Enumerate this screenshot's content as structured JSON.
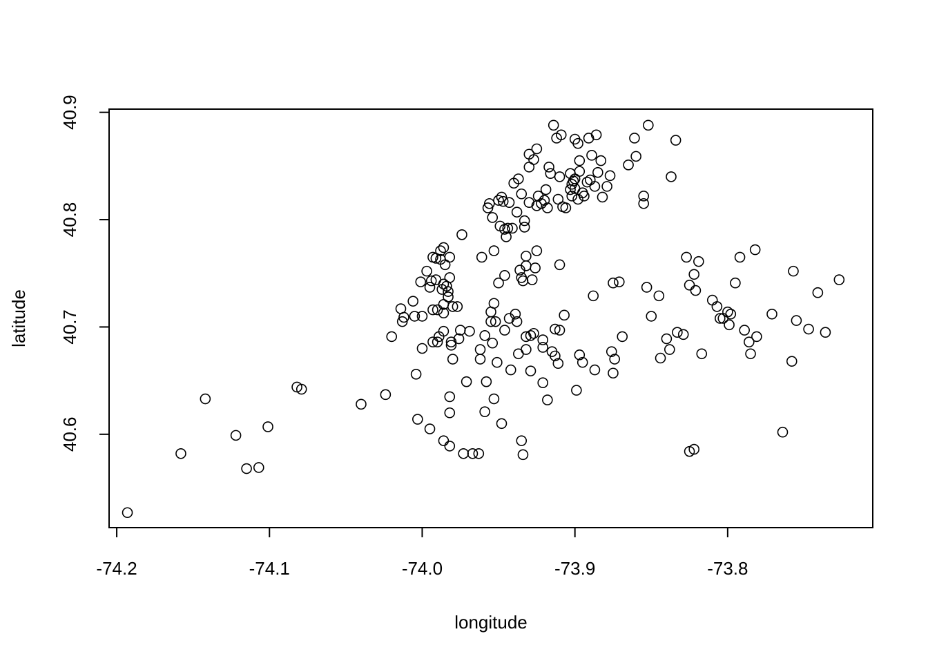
{
  "chart_data": {
    "type": "scatter",
    "title": "",
    "xlabel": "longitude",
    "ylabel": "latitude",
    "xlim": [
      -74.205,
      -73.705
    ],
    "ylim": [
      40.513,
      40.903
    ],
    "x_ticks": [
      -74.2,
      -74.1,
      -74.0,
      -73.9,
      -73.8
    ],
    "x_tick_labels": [
      "-74.2",
      "-74.1",
      "-74.0",
      "-73.9",
      "-73.8"
    ],
    "y_ticks": [
      40.6,
      40.7,
      40.8,
      40.9
    ],
    "y_tick_labels": [
      "40.6",
      "40.7",
      "40.8",
      "40.9"
    ],
    "grid": false,
    "legend": "none",
    "marker": "open-circle",
    "color": "#000000",
    "points": [
      [
        -74.193,
        40.527
      ],
      [
        -74.158,
        40.582
      ],
      [
        -74.142,
        40.633
      ],
      [
        -74.122,
        40.599
      ],
      [
        -74.115,
        40.568
      ],
      [
        -74.107,
        40.569
      ],
      [
        -74.101,
        40.607
      ],
      [
        -74.082,
        40.644
      ],
      [
        -74.079,
        40.642
      ],
      [
        -74.04,
        40.628
      ],
      [
        -74.024,
        40.637
      ],
      [
        -74.02,
        40.691
      ],
      [
        -74.014,
        40.717
      ],
      [
        -74.013,
        40.705
      ],
      [
        -74.012,
        40.709
      ],
      [
        -74.006,
        40.724
      ],
      [
        -74.005,
        40.71
      ],
      [
        -74.003,
        40.614
      ],
      [
        -74.004,
        40.656
      ],
      [
        -74.001,
        40.742
      ],
      [
        -74.0,
        40.71
      ],
      [
        -74.0,
        40.68
      ],
      [
        -73.997,
        40.752
      ],
      [
        -73.995,
        40.737
      ],
      [
        -73.994,
        40.743
      ],
      [
        -73.995,
        40.605
      ],
      [
        -73.993,
        40.765
      ],
      [
        -73.993,
        40.686
      ],
      [
        -73.993,
        40.716
      ],
      [
        -73.991,
        40.764
      ],
      [
        -73.991,
        40.744
      ],
      [
        -73.99,
        40.686
      ],
      [
        -73.99,
        40.716
      ],
      [
        -73.989,
        40.691
      ],
      [
        -73.988,
        40.771
      ],
      [
        -73.988,
        40.763
      ],
      [
        -73.987,
        40.735
      ],
      [
        -73.986,
        40.774
      ],
      [
        -73.986,
        40.74
      ],
      [
        -73.986,
        40.721
      ],
      [
        -73.986,
        40.713
      ],
      [
        -73.986,
        40.696
      ],
      [
        -73.986,
        40.594
      ],
      [
        -73.985,
        40.758
      ],
      [
        -73.984,
        40.738
      ],
      [
        -73.983,
        40.728
      ],
      [
        -73.983,
        40.733
      ],
      [
        -73.982,
        40.765
      ],
      [
        -73.982,
        40.746
      ],
      [
        -73.982,
        40.635
      ],
      [
        -73.982,
        40.62
      ],
      [
        -73.982,
        40.589
      ],
      [
        -73.981,
        40.686
      ],
      [
        -73.981,
        40.683
      ],
      [
        -73.98,
        40.67
      ],
      [
        -73.98,
        40.719
      ],
      [
        -73.977,
        40.719
      ],
      [
        -73.976,
        40.689
      ],
      [
        -73.975,
        40.697
      ],
      [
        -73.974,
        40.786
      ],
      [
        -73.973,
        40.582
      ],
      [
        -73.971,
        40.649
      ],
      [
        -73.969,
        40.696
      ],
      [
        -73.967,
        40.582
      ],
      [
        -73.963,
        40.582
      ],
      [
        -73.962,
        40.679
      ],
      [
        -73.962,
        40.67
      ],
      [
        -73.961,
        40.765
      ],
      [
        -73.959,
        40.692
      ],
      [
        -73.959,
        40.621
      ],
      [
        -73.958,
        40.649
      ],
      [
        -73.957,
        40.811
      ],
      [
        -73.956,
        40.815
      ],
      [
        -73.955,
        40.705
      ],
      [
        -73.955,
        40.714
      ],
      [
        -73.954,
        40.685
      ],
      [
        -73.954,
        40.802
      ],
      [
        -73.953,
        40.722
      ],
      [
        -73.953,
        40.771
      ],
      [
        -73.953,
        40.633
      ],
      [
        -73.952,
        40.705
      ],
      [
        -73.951,
        40.667
      ],
      [
        -73.95,
        40.818
      ],
      [
        -73.95,
        40.741
      ],
      [
        -73.949,
        40.794
      ],
      [
        -73.948,
        40.821
      ],
      [
        -73.948,
        40.61
      ],
      [
        -73.947,
        40.817
      ],
      [
        -73.946,
        40.791
      ],
      [
        -73.946,
        40.748
      ],
      [
        -73.946,
        40.697
      ],
      [
        -73.945,
        40.784
      ],
      [
        -73.944,
        40.792
      ],
      [
        -73.943,
        40.816
      ],
      [
        -73.943,
        40.708
      ],
      [
        -73.942,
        40.66
      ],
      [
        -73.941,
        40.792
      ],
      [
        -73.94,
        40.834
      ],
      [
        -73.939,
        40.712
      ],
      [
        -73.938,
        40.807
      ],
      [
        -73.938,
        40.705
      ],
      [
        -73.937,
        40.838
      ],
      [
        -73.937,
        40.675
      ],
      [
        -73.936,
        40.753
      ],
      [
        -73.935,
        40.824
      ],
      [
        -73.935,
        40.746
      ],
      [
        -73.935,
        40.594
      ],
      [
        -73.934,
        40.581
      ],
      [
        -73.934,
        40.743
      ],
      [
        -73.933,
        40.793
      ],
      [
        -73.933,
        40.799
      ],
      [
        -73.932,
        40.766
      ],
      [
        -73.932,
        40.757
      ],
      [
        -73.932,
        40.691
      ],
      [
        -73.932,
        40.679
      ],
      [
        -73.93,
        40.849
      ],
      [
        -73.93,
        40.861
      ],
      [
        -73.93,
        40.816
      ],
      [
        -73.929,
        40.659
      ],
      [
        -73.929,
        40.692
      ],
      [
        -73.928,
        40.744
      ],
      [
        -73.927,
        40.856
      ],
      [
        -73.927,
        40.694
      ],
      [
        -73.926,
        40.755
      ],
      [
        -73.925,
        40.866
      ],
      [
        -73.925,
        40.813
      ],
      [
        -73.925,
        40.771
      ],
      [
        -73.924,
        40.822
      ],
      [
        -73.922,
        40.815
      ],
      [
        -73.921,
        40.681
      ],
      [
        -73.921,
        40.648
      ],
      [
        -73.921,
        40.688
      ],
      [
        -73.92,
        40.818
      ],
      [
        -73.919,
        40.828
      ],
      [
        -73.918,
        40.632
      ],
      [
        -73.918,
        40.811
      ],
      [
        -73.917,
        40.849
      ],
      [
        -73.916,
        40.843
      ],
      [
        -73.915,
        40.677
      ],
      [
        -73.914,
        40.888
      ],
      [
        -73.913,
        40.698
      ],
      [
        -73.913,
        40.673
      ],
      [
        -73.912,
        40.876
      ],
      [
        -73.911,
        40.819
      ],
      [
        -73.911,
        40.666
      ],
      [
        -73.91,
        40.697
      ],
      [
        -73.91,
        40.758
      ],
      [
        -73.91,
        40.84
      ],
      [
        -73.909,
        40.879
      ],
      [
        -73.908,
        40.812
      ],
      [
        -73.907,
        40.711
      ],
      [
        -73.906,
        40.811
      ],
      [
        -73.903,
        40.828
      ],
      [
        -73.903,
        40.843
      ],
      [
        -73.902,
        40.822
      ],
      [
        -73.902,
        40.833
      ],
      [
        -73.901,
        40.836
      ],
      [
        -73.9,
        40.875
      ],
      [
        -73.9,
        40.838
      ],
      [
        -73.9,
        40.829
      ],
      [
        -73.899,
        40.641
      ],
      [
        -73.898,
        40.819
      ],
      [
        -73.898,
        40.871
      ],
      [
        -73.897,
        40.855
      ],
      [
        -73.897,
        40.845
      ],
      [
        -73.897,
        40.674
      ],
      [
        -73.895,
        40.667
      ],
      [
        -73.895,
        40.825
      ],
      [
        -73.894,
        40.822
      ],
      [
        -73.892,
        40.835
      ],
      [
        -73.891,
        40.876
      ],
      [
        -73.89,
        40.837
      ],
      [
        -73.889,
        40.86
      ],
      [
        -73.888,
        40.729
      ],
      [
        -73.887,
        40.66
      ],
      [
        -73.887,
        40.831
      ],
      [
        -73.886,
        40.879
      ],
      [
        -73.885,
        40.844
      ],
      [
        -73.883,
        40.855
      ],
      [
        -73.882,
        40.821
      ],
      [
        -73.879,
        40.831
      ],
      [
        -73.877,
        40.841
      ],
      [
        -73.876,
        40.677
      ],
      [
        -73.875,
        40.741
      ],
      [
        -73.875,
        40.657
      ],
      [
        -73.874,
        40.67
      ],
      [
        -73.871,
        40.742
      ],
      [
        -73.869,
        40.691
      ],
      [
        -73.865,
        40.851
      ],
      [
        -73.861,
        40.876
      ],
      [
        -73.86,
        40.859
      ],
      [
        -73.855,
        40.815
      ],
      [
        -73.855,
        40.822
      ],
      [
        -73.853,
        40.737
      ],
      [
        -73.852,
        40.888
      ],
      [
        -73.85,
        40.71
      ],
      [
        -73.845,
        40.729
      ],
      [
        -73.844,
        40.671
      ],
      [
        -73.84,
        40.689
      ],
      [
        -73.838,
        40.679
      ],
      [
        -73.837,
        40.84
      ],
      [
        -73.834,
        40.874
      ],
      [
        -73.833,
        40.695
      ],
      [
        -73.829,
        40.693
      ],
      [
        -73.827,
        40.765
      ],
      [
        -73.825,
        40.739
      ],
      [
        -73.825,
        40.584
      ],
      [
        -73.822,
        40.586
      ],
      [
        -73.822,
        40.749
      ],
      [
        -73.821,
        40.734
      ],
      [
        -73.819,
        40.761
      ],
      [
        -73.817,
        40.675
      ],
      [
        -73.81,
        40.725
      ],
      [
        -73.807,
        40.719
      ],
      [
        -73.805,
        40.708
      ],
      [
        -73.803,
        40.708
      ],
      [
        -73.8,
        40.714
      ],
      [
        -73.799,
        40.702
      ],
      [
        -73.798,
        40.712
      ],
      [
        -73.795,
        40.741
      ],
      [
        -73.792,
        40.765
      ],
      [
        -73.789,
        40.697
      ],
      [
        -73.786,
        40.686
      ],
      [
        -73.785,
        40.675
      ],
      [
        -73.782,
        40.772
      ],
      [
        -73.781,
        40.691
      ],
      [
        -73.771,
        40.712
      ],
      [
        -73.764,
        40.602
      ],
      [
        -73.758,
        40.668
      ],
      [
        -73.757,
        40.752
      ],
      [
        -73.755,
        40.706
      ],
      [
        -73.747,
        40.698
      ],
      [
        -73.741,
        40.732
      ],
      [
        -73.736,
        40.695
      ],
      [
        -73.727,
        40.744
      ]
    ]
  }
}
